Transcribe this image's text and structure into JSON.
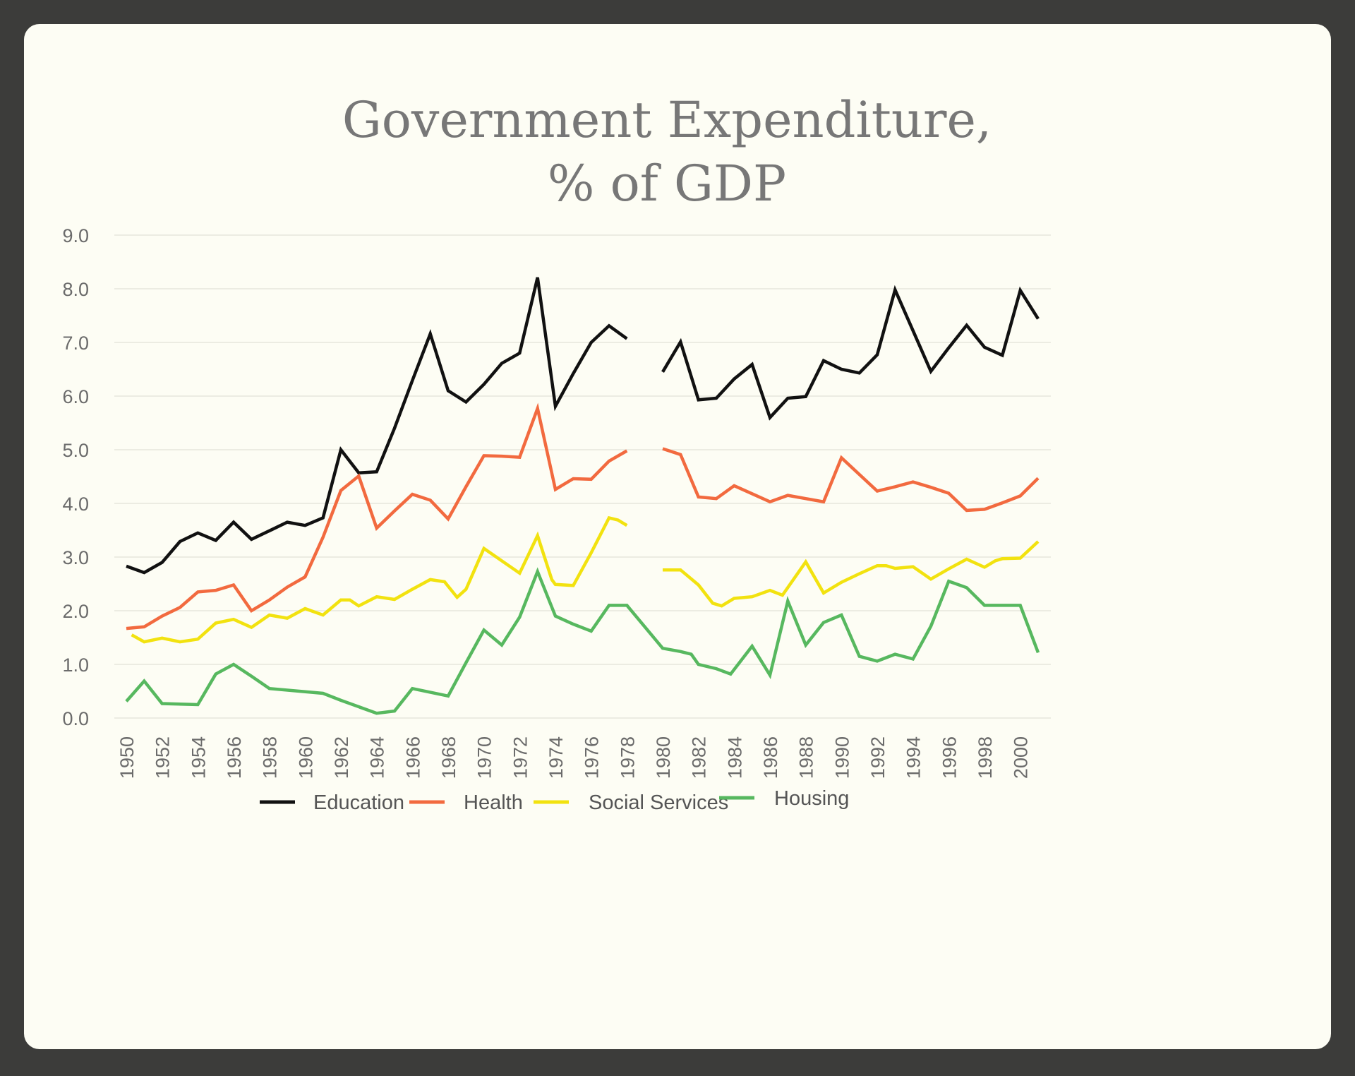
{
  "chart_data": {
    "type": "line",
    "title_lines": [
      "Government Expenditure,",
      "% of GDP"
    ],
    "xlabel": "",
    "ylabel": "",
    "ylim": [
      0,
      9
    ],
    "yticks": [
      "0.0",
      "1.0",
      "2.0",
      "3.0",
      "4.0",
      "5.0",
      "6.0",
      "7.0",
      "8.0",
      "9.0"
    ],
    "xlim": [
      1950,
      2001
    ],
    "xticks": [
      "1950",
      "1952",
      "1954",
      "1956",
      "1958",
      "1960",
      "1962",
      "1964",
      "1966",
      "1968",
      "1970",
      "1972",
      "1974",
      "1976",
      "1978",
      "1980",
      "1982",
      "1984",
      "1986",
      "1988",
      "1990",
      "1992",
      "1994",
      "1996",
      "1998",
      "2000"
    ],
    "grid": "horizontal",
    "legend_position": "bottom",
    "series": [
      {
        "name": "Education",
        "color": "#111111",
        "segments": [
          [
            [
              1950,
              2.83
            ],
            [
              1951,
              2.71
            ],
            [
              1952,
              2.9
            ],
            [
              1953,
              3.29
            ],
            [
              1954,
              3.45
            ],
            [
              1955,
              3.31
            ],
            [
              1956,
              3.65
            ],
            [
              1957,
              3.33
            ],
            [
              1958,
              3.49
            ],
            [
              1959,
              3.65
            ],
            [
              1960,
              3.59
            ],
            [
              1961,
              3.73
            ],
            [
              1962,
              5.0
            ],
            [
              1963,
              4.57
            ],
            [
              1964,
              4.59
            ],
            [
              1965,
              5.4
            ],
            [
              1966,
              6.29
            ],
            [
              1967,
              7.16
            ],
            [
              1968,
              6.1
            ],
            [
              1969,
              5.89
            ],
            [
              1970,
              6.22
            ],
            [
              1971,
              6.61
            ],
            [
              1972,
              6.8
            ],
            [
              1973,
              8.21
            ],
            [
              1974,
              5.81
            ],
            [
              1975,
              6.42
            ],
            [
              1976,
              7.0
            ],
            [
              1977,
              7.31
            ],
            [
              1978,
              7.07
            ]
          ],
          [
            [
              1980,
              6.45
            ],
            [
              1981,
              7.01
            ],
            [
              1982,
              5.93
            ],
            [
              1983,
              5.96
            ],
            [
              1984,
              6.32
            ],
            [
              1985,
              6.59
            ],
            [
              1986,
              5.6
            ],
            [
              1987,
              5.96
            ],
            [
              1988,
              5.99
            ],
            [
              1989,
              6.66
            ],
            [
              1990,
              6.5
            ],
            [
              1991,
              6.43
            ],
            [
              1992,
              6.77
            ],
            [
              1993,
              7.98
            ],
            [
              1994,
              7.22
            ],
            [
              1995,
              6.46
            ],
            [
              1996,
              6.9
            ],
            [
              1997,
              7.32
            ],
            [
              1998,
              6.91
            ],
            [
              1999,
              6.76
            ],
            [
              2000,
              7.97
            ],
            [
              2001,
              7.44
            ]
          ]
        ]
      },
      {
        "name": "Health",
        "color": "#f26a3f",
        "segments": [
          [
            [
              1950,
              1.67
            ],
            [
              1951,
              1.7
            ],
            [
              1952,
              1.9
            ],
            [
              1953,
              2.06
            ],
            [
              1954,
              2.35
            ],
            [
              1955,
              2.38
            ],
            [
              1956,
              2.48
            ],
            [
              1957,
              2.0
            ],
            [
              1958,
              2.2
            ],
            [
              1959,
              2.44
            ],
            [
              1960,
              2.63
            ],
            [
              1961,
              3.37
            ],
            [
              1962,
              4.24
            ],
            [
              1963,
              4.51
            ],
            [
              1964,
              3.54
            ],
            [
              1965,
              3.86
            ],
            [
              1966,
              4.17
            ],
            [
              1967,
              4.06
            ],
            [
              1968,
              3.71
            ],
            [
              1969,
              4.31
            ],
            [
              1970,
              4.89
            ],
            [
              1971,
              4.88
            ],
            [
              1972,
              4.86
            ],
            [
              1973,
              5.77
            ],
            [
              1974,
              4.26
            ],
            [
              1975,
              4.46
            ],
            [
              1976,
              4.45
            ],
            [
              1977,
              4.79
            ],
            [
              1978,
              4.98
            ]
          ],
          [
            [
              1980,
              5.02
            ],
            [
              1981,
              4.91
            ],
            [
              1982,
              4.12
            ],
            [
              1983,
              4.09
            ],
            [
              1984,
              4.33
            ],
            [
              1985,
              4.18
            ],
            [
              1986,
              4.03
            ],
            [
              1987,
              4.15
            ],
            [
              1988,
              4.09
            ],
            [
              1989,
              4.03
            ],
            [
              1990,
              4.85
            ],
            [
              1991,
              4.54
            ],
            [
              1992,
              4.23
            ],
            [
              1993,
              4.31
            ],
            [
              1994,
              4.4
            ],
            [
              1995,
              4.3
            ],
            [
              1996,
              4.19
            ],
            [
              1997,
              3.87
            ],
            [
              1998,
              3.89
            ],
            [
              1999,
              4.01
            ],
            [
              2000,
              4.14
            ],
            [
              2001,
              4.47
            ]
          ]
        ]
      },
      {
        "name": "Social Services",
        "color": "#f2e20f",
        "segments": [
          [
            [
              1950.3,
              1.55
            ],
            [
              1951,
              1.42
            ],
            [
              1952,
              1.49
            ],
            [
              1953,
              1.42
            ],
            [
              1954,
              1.47
            ],
            [
              1955,
              1.77
            ],
            [
              1956,
              1.84
            ],
            [
              1957,
              1.69
            ],
            [
              1958,
              1.92
            ],
            [
              1959,
              1.86
            ],
            [
              1960,
              2.04
            ],
            [
              1961,
              1.92
            ],
            [
              1962,
              2.2
            ],
            [
              1962.5,
              2.2
            ],
            [
              1963,
              2.09
            ],
            [
              1964,
              2.26
            ],
            [
              1965,
              2.21
            ],
            [
              1966,
              2.4
            ],
            [
              1967,
              2.58
            ],
            [
              1967.8,
              2.54
            ],
            [
              1968.5,
              2.25
            ],
            [
              1969,
              2.4
            ],
            [
              1970,
              3.16
            ],
            [
              1971,
              2.93
            ],
            [
              1972,
              2.7
            ],
            [
              1973,
              3.4
            ],
            [
              1973.8,
              2.58
            ],
            [
              1974,
              2.49
            ],
            [
              1975,
              2.47
            ],
            [
              1976,
              3.08
            ],
            [
              1977,
              3.73
            ],
            [
              1977.5,
              3.69
            ],
            [
              1978,
              3.59
            ]
          ],
          [
            [
              1980,
              2.76
            ],
            [
              1981,
              2.76
            ],
            [
              1982,
              2.48
            ],
            [
              1982.8,
              2.14
            ],
            [
              1983.3,
              2.09
            ],
            [
              1984,
              2.23
            ],
            [
              1985,
              2.26
            ],
            [
              1986,
              2.38
            ],
            [
              1986.7,
              2.29
            ],
            [
              1988,
              2.91
            ],
            [
              1989,
              2.33
            ],
            [
              1990,
              2.53
            ],
            [
              1991,
              2.69
            ],
            [
              1992,
              2.84
            ],
            [
              1992.5,
              2.84
            ],
            [
              1993,
              2.79
            ],
            [
              1994,
              2.82
            ],
            [
              1995,
              2.59
            ],
            [
              1996,
              2.78
            ],
            [
              1997,
              2.96
            ],
            [
              1998,
              2.81
            ],
            [
              1998.6,
              2.93
            ],
            [
              1999,
              2.97
            ],
            [
              2000,
              2.98
            ],
            [
              2001,
              3.29
            ]
          ]
        ]
      },
      {
        "name": "Housing",
        "color": "#57b85f",
        "segments": [
          [
            [
              1950,
              0.31
            ],
            [
              1951,
              0.69
            ],
            [
              1952,
              0.27
            ],
            [
              1954,
              0.25
            ],
            [
              1955,
              0.82
            ],
            [
              1956,
              1.0
            ],
            [
              1957,
              0.78
            ],
            [
              1958,
              0.55
            ],
            [
              1961,
              0.46
            ],
            [
              1962,
              0.33
            ],
            [
              1964,
              0.09
            ],
            [
              1965,
              0.13
            ],
            [
              1966,
              0.55
            ],
            [
              1968,
              0.41
            ],
            [
              1969,
              1.03
            ],
            [
              1970,
              1.64
            ],
            [
              1971,
              1.36
            ],
            [
              1972,
              1.88
            ],
            [
              1973,
              2.73
            ],
            [
              1974,
              1.9
            ],
            [
              1975,
              1.75
            ],
            [
              1976,
              1.62
            ],
            [
              1977,
              2.1
            ],
            [
              1978,
              2.1
            ],
            [
              1980,
              1.3
            ],
            [
              1981,
              1.24
            ],
            [
              1981.6,
              1.19
            ],
            [
              1982,
              1.0
            ],
            [
              1983,
              0.92
            ],
            [
              1983.8,
              0.82
            ],
            [
              1985,
              1.34
            ],
            [
              1986,
              0.8
            ],
            [
              1987,
              2.18
            ],
            [
              1988,
              1.36
            ],
            [
              1989,
              1.78
            ],
            [
              1990,
              1.92
            ],
            [
              1991,
              1.15
            ],
            [
              1992,
              1.06
            ],
            [
              1993,
              1.19
            ],
            [
              1994,
              1.1
            ],
            [
              1995,
              1.71
            ],
            [
              1996,
              2.55
            ],
            [
              1997,
              2.43
            ],
            [
              1998,
              2.1
            ],
            [
              2000,
              2.1
            ],
            [
              2001,
              1.22
            ]
          ]
        ]
      }
    ]
  }
}
